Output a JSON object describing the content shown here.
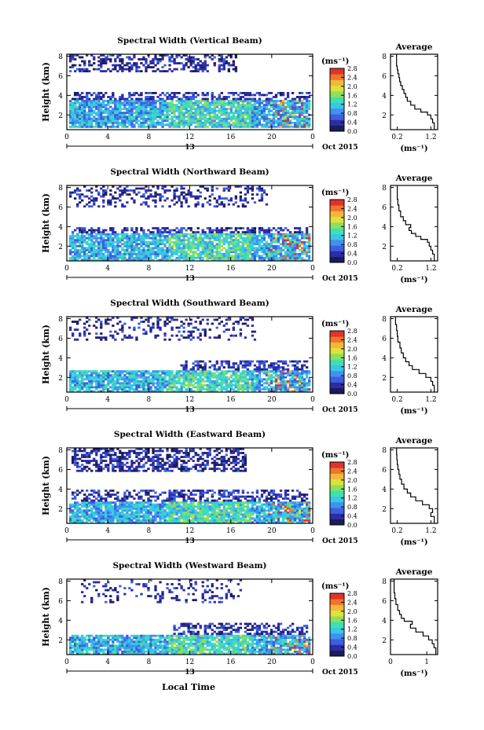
{
  "figure": {
    "xlabel": "Local Time",
    "date_label": "Oct 2015",
    "day_label": "13",
    "unit_label": "(ms⁻¹)"
  },
  "colorbar": {
    "ticks": [
      "0.0",
      "0.4",
      "0.8",
      "1.2",
      "1.6",
      "2.0",
      "2.4",
      "2.8"
    ],
    "colors": [
      "#1b1b5a",
      "#2c2ca8",
      "#3d5fe0",
      "#3f93f0",
      "#38c7e8",
      "#3fe0b0",
      "#8de05a",
      "#dde23a",
      "#f5b73a",
      "#f0742a",
      "#e0332a"
    ]
  },
  "chart_data": [
    {
      "type": "heatmap",
      "title": "Spectral Width (Vertical Beam)",
      "ylabel": "Height (km)",
      "xlabel": "",
      "x_ticks": [
        "0",
        "4",
        "8",
        "12",
        "16",
        "20",
        "0"
      ],
      "y_ticks": [
        "2",
        "4",
        "6",
        "8"
      ],
      "xlim": [
        0,
        24
      ],
      "ylim": [
        0.5,
        8.2
      ],
      "clim": [
        0.0,
        2.8
      ],
      "grid": false,
      "bands": [
        {
          "h0": 6.3,
          "h1": 8.2,
          "t0": 0.3,
          "t1": 16.5,
          "fill": 0.45,
          "v": 0.35
        },
        {
          "h0": 3.6,
          "h1": 4.3,
          "t0": 0.5,
          "t1": 23.8,
          "fill": 0.55,
          "v": 0.4
        },
        {
          "h0": 0.7,
          "h1": 3.6,
          "t0": 0.2,
          "t1": 23.8,
          "fill": 0.9,
          "v": 0.9
        }
      ],
      "average_profile": {
        "title": "Average",
        "xlabel": "(ms⁻¹)",
        "x_ticks": [
          "0.2",
          "1.2"
        ],
        "xlim": [
          0.0,
          1.4
        ],
        "y_ticks": [
          "2",
          "4",
          "6",
          "8"
        ],
        "ylim": [
          0.5,
          8.2
        ],
        "heights": [
          8.2,
          7.5,
          7.0,
          6.6,
          6.2,
          5.8,
          5.4,
          5.0,
          4.6,
          4.2,
          3.8,
          3.4,
          3.0,
          2.6,
          2.3,
          2.0,
          1.6,
          1.2,
          0.8
        ],
        "values": [
          0.18,
          0.18,
          0.2,
          0.22,
          0.25,
          0.27,
          0.3,
          0.35,
          0.4,
          0.45,
          0.5,
          0.6,
          0.72,
          0.9,
          1.1,
          1.2,
          1.25,
          1.3,
          1.3
        ]
      }
    },
    {
      "type": "heatmap",
      "title": "Spectral Width (Northward Beam)",
      "ylabel": "Height (km)",
      "xlabel": "",
      "x_ticks": [
        "0",
        "4",
        "8",
        "12",
        "16",
        "20",
        "0"
      ],
      "y_ticks": [
        "2",
        "4",
        "6",
        "8"
      ],
      "xlim": [
        0,
        24
      ],
      "ylim": [
        0.5,
        8.2
      ],
      "clim": [
        0.0,
        2.8
      ],
      "grid": false,
      "bands": [
        {
          "h0": 6.0,
          "h1": 8.2,
          "t0": 0.3,
          "t1": 19.5,
          "fill": 0.3,
          "v": 0.35
        },
        {
          "h0": 3.3,
          "h1": 4.0,
          "t0": 0.5,
          "t1": 23.5,
          "fill": 0.5,
          "v": 0.4
        },
        {
          "h0": 0.6,
          "h1": 3.3,
          "t0": 0.2,
          "t1": 23.8,
          "fill": 0.85,
          "v": 0.95
        }
      ],
      "average_profile": {
        "title": "Average",
        "xlabel": "(ms⁻¹)",
        "x_ticks": [
          "0.2",
          "1.2"
        ],
        "xlim": [
          0.0,
          1.4
        ],
        "y_ticks": [
          "2",
          "4",
          "6",
          "8"
        ],
        "ylim": [
          0.5,
          8.2
        ],
        "heights": [
          8.2,
          7.4,
          6.8,
          6.2,
          5.6,
          5.0,
          4.6,
          4.2,
          3.9,
          3.6,
          3.3,
          3.0,
          2.7,
          2.4,
          2.0,
          1.6,
          1.2,
          0.8
        ],
        "values": [
          0.2,
          0.2,
          0.22,
          0.25,
          0.3,
          0.38,
          0.45,
          0.6,
          0.55,
          0.62,
          0.75,
          0.9,
          1.1,
          1.15,
          1.2,
          1.25,
          1.3,
          1.3
        ]
      }
    },
    {
      "type": "heatmap",
      "title": "Spectral Width (Southward Beam)",
      "ylabel": "Height (km)",
      "xlabel": "",
      "x_ticks": [
        "0",
        "4",
        "8",
        "12",
        "16",
        "20",
        "0"
      ],
      "y_ticks": [
        "2",
        "4",
        "6",
        "8"
      ],
      "xlim": [
        0,
        24
      ],
      "ylim": [
        0.5,
        8.2
      ],
      "clim": [
        0.0,
        2.8
      ],
      "grid": false,
      "bands": [
        {
          "h0": 5.8,
          "h1": 8.2,
          "t0": 0.3,
          "t1": 18.5,
          "fill": 0.25,
          "v": 0.35
        },
        {
          "h0": 2.8,
          "h1": 3.8,
          "t0": 11.0,
          "t1": 23.5,
          "fill": 0.55,
          "v": 0.45
        },
        {
          "h0": 0.6,
          "h1": 2.8,
          "t0": 0.3,
          "t1": 23.8,
          "fill": 0.85,
          "v": 0.95
        }
      ],
      "average_profile": {
        "title": "Average",
        "xlabel": "(ms⁻¹)",
        "x_ticks": [
          "0.2",
          "1.2"
        ],
        "xlim": [
          0.0,
          1.4
        ],
        "y_ticks": [
          "2",
          "4",
          "6",
          "8"
        ],
        "ylim": [
          0.5,
          8.2
        ],
        "heights": [
          8.2,
          7.4,
          6.8,
          6.2,
          5.6,
          5.0,
          4.5,
          4.0,
          3.6,
          3.2,
          2.8,
          2.4,
          2.0,
          1.6,
          1.2,
          0.8
        ],
        "values": [
          0.15,
          0.18,
          0.2,
          0.22,
          0.28,
          0.32,
          0.38,
          0.45,
          0.55,
          0.65,
          0.85,
          1.05,
          1.2,
          1.25,
          1.3,
          1.3
        ]
      }
    },
    {
      "type": "heatmap",
      "title": "Spectral Width (Eastward Beam)",
      "ylabel": "Height (km)",
      "xlabel": "",
      "x_ticks": [
        "0",
        "4",
        "8",
        "12",
        "16",
        "20",
        "0"
      ],
      "y_ticks": [
        "2",
        "4",
        "6",
        "8"
      ],
      "xlim": [
        0,
        24
      ],
      "ylim": [
        0.5,
        8.2
      ],
      "clim": [
        0.0,
        2.8
      ],
      "grid": false,
      "bands": [
        {
          "h0": 5.8,
          "h1": 8.2,
          "t0": 0.5,
          "t1": 17.5,
          "fill": 0.55,
          "v": 0.35
        },
        {
          "h0": 2.8,
          "h1": 4.0,
          "t0": 0.5,
          "t1": 23.5,
          "fill": 0.5,
          "v": 0.4
        },
        {
          "h0": 0.6,
          "h1": 2.8,
          "t0": 0.3,
          "t1": 23.8,
          "fill": 0.88,
          "v": 0.95
        }
      ],
      "average_profile": {
        "title": "Average",
        "xlabel": "(ms⁻¹)",
        "x_ticks": [
          "0.2",
          "1.2"
        ],
        "xlim": [
          0.0,
          1.4
        ],
        "y_ticks": [
          "2",
          "4",
          "6",
          "8"
        ],
        "ylim": [
          0.5,
          8.2
        ],
        "heights": [
          8.2,
          7.5,
          7.0,
          6.5,
          6.0,
          5.5,
          5.0,
          4.5,
          4.0,
          3.6,
          3.2,
          2.8,
          2.4,
          2.0,
          1.6,
          1.2,
          0.8
        ],
        "values": [
          0.18,
          0.19,
          0.2,
          0.22,
          0.25,
          0.28,
          0.33,
          0.4,
          0.5,
          0.6,
          0.75,
          0.95,
          1.15,
          1.25,
          1.2,
          1.3,
          1.3
        ]
      }
    },
    {
      "type": "heatmap",
      "title": "Spectral Width (Westward Beam)",
      "ylabel": "Height (km)",
      "xlabel": "Local Time",
      "x_ticks": [
        "0",
        "4",
        "8",
        "12",
        "16",
        "20",
        "0"
      ],
      "y_ticks": [
        "2",
        "4",
        "6",
        "8"
      ],
      "xlim": [
        0,
        24
      ],
      "ylim": [
        0.5,
        8.2
      ],
      "clim": [
        0.0,
        2.8
      ],
      "grid": false,
      "bands": [
        {
          "h0": 5.8,
          "h1": 8.2,
          "t0": 1.5,
          "t1": 17.0,
          "fill": 0.18,
          "v": 0.35
        },
        {
          "h0": 2.6,
          "h1": 3.8,
          "t0": 10.5,
          "t1": 23.5,
          "fill": 0.45,
          "v": 0.4
        },
        {
          "h0": 0.6,
          "h1": 2.6,
          "t0": 0.3,
          "t1": 23.8,
          "fill": 0.88,
          "v": 0.95
        }
      ],
      "average_profile": {
        "title": "Average",
        "xlabel": "(ms⁻¹)",
        "x_ticks": [
          "0",
          "1"
        ],
        "xlim": [
          0.0,
          1.3
        ],
        "y_ticks": [
          "2",
          "4",
          "6",
          "8"
        ],
        "ylim": [
          0.5,
          8.2
        ],
        "heights": [
          8.2,
          7.4,
          6.8,
          6.2,
          5.6,
          5.0,
          4.6,
          4.2,
          3.9,
          3.6,
          3.2,
          2.8,
          2.4,
          2.0,
          1.6,
          1.2,
          0.8
        ],
        "values": [
          0.1,
          0.1,
          0.12,
          0.15,
          0.2,
          0.25,
          0.3,
          0.38,
          0.6,
          0.55,
          0.7,
          0.9,
          1.05,
          1.15,
          1.2,
          1.25,
          1.25
        ]
      }
    }
  ]
}
